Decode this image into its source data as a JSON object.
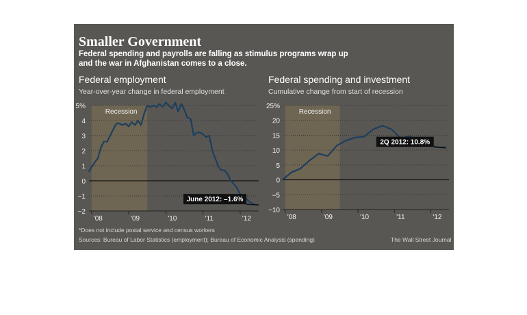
{
  "headline": "Smaller Government",
  "dek": [
    "Federal spending and payrolls are falling as stimulus programs wrap up",
    "and the war in Afghanistan comes to a close."
  ],
  "footnote": "*Does not include postal service and census workers",
  "sources": "Sources: Bureau of Labor Statistics (employment); Bureau of Economic Analysis (spending)",
  "credit": "The Wall Street Journal",
  "colors": {
    "background": "#595753",
    "line": "#1c3f5e",
    "recession": "#6e6553",
    "callout": "#111111",
    "text": "#f2f2f2"
  },
  "chart_data": [
    {
      "type": "line",
      "title": "Federal employment",
      "subtitle": "Year-over-year change in federal employment",
      "unit_label": "%",
      "shade_label": "Recession",
      "shade_range": [
        2008.0,
        2009.5
      ],
      "callout": "June 2012: –1.6%",
      "xlim": [
        2007.93,
        2012.5
      ],
      "ylim": [
        -2,
        5
      ],
      "yticks": [
        -2,
        -1,
        0,
        1,
        2,
        3,
        4,
        5
      ],
      "ytick_labels": [
        "−2",
        "−1",
        "0",
        "1",
        "2",
        "3",
        "4",
        "5%"
      ],
      "xticks": [
        2008,
        2009,
        2010,
        2011,
        2012
      ],
      "xtick_labels": [
        "'08",
        "'09",
        "'10",
        "'11",
        "'12"
      ],
      "x": [
        2007.92,
        2008.0,
        2008.08,
        2008.17,
        2008.25,
        2008.33,
        2008.42,
        2008.5,
        2008.58,
        2008.67,
        2008.75,
        2008.83,
        2008.92,
        2009.0,
        2009.08,
        2009.17,
        2009.25,
        2009.33,
        2009.42,
        2009.5,
        2009.58,
        2009.67,
        2009.75,
        2009.83,
        2009.92,
        2010.0,
        2010.08,
        2010.17,
        2010.25,
        2010.33,
        2010.42,
        2010.5,
        2010.58,
        2010.67,
        2010.75,
        2010.83,
        2010.92,
        2011.0,
        2011.08,
        2011.17,
        2011.25,
        2011.33,
        2011.42,
        2011.5,
        2011.58,
        2011.67,
        2011.75,
        2011.83,
        2011.92,
        2012.0,
        2012.08,
        2012.17,
        2012.25,
        2012.33,
        2012.42,
        2012.5
      ],
      "y": [
        0.6,
        0.9,
        1.2,
        1.5,
        2.2,
        2.6,
        2.6,
        3.0,
        3.4,
        3.8,
        3.8,
        3.7,
        3.8,
        3.6,
        3.9,
        3.7,
        4.0,
        3.7,
        4.5,
        5.0,
        4.9,
        5.0,
        4.9,
        5.1,
        4.9,
        5.2,
        5.0,
        4.8,
        5.2,
        4.6,
        5.1,
        4.7,
        4.2,
        4.1,
        3.0,
        3.2,
        3.2,
        3.1,
        2.9,
        3.0,
        2.0,
        1.5,
        0.9,
        0.7,
        0.7,
        0.4,
        0.0,
        -0.2,
        -0.5,
        -0.9,
        -1.1,
        -1.2,
        -1.4,
        -1.5,
        -1.6,
        -1.6
      ]
    },
    {
      "type": "line",
      "title": "Federal spending and investment",
      "subtitle": "Cumulative change from start of recession",
      "unit_label": "%",
      "shade_label": "Recession",
      "shade_range": [
        2008.0,
        2009.5
      ],
      "callout": "2Q 2012: 10.8%",
      "xlim": [
        2007.93,
        2012.5
      ],
      "ylim": [
        -10,
        25
      ],
      "yticks": [
        -10,
        -5,
        0,
        5,
        10,
        15,
        20,
        25
      ],
      "ytick_labels": [
        "−10",
        "−5",
        "0",
        "5",
        "10",
        "15",
        "20",
        "25%"
      ],
      "xticks": [
        2008,
        2009,
        2010,
        2011,
        2012
      ],
      "xtick_labels": [
        "'08",
        "'09",
        "'10",
        "'11",
        "'12"
      ],
      "x": [
        2007.92,
        2008.17,
        2008.42,
        2008.67,
        2008.92,
        2009.17,
        2009.42,
        2009.67,
        2009.92,
        2010.17,
        2010.42,
        2010.67,
        2010.92,
        2011.17,
        2011.42,
        2011.67,
        2011.92,
        2012.17,
        2012.42
      ],
      "y": [
        0.0,
        2.5,
        3.8,
        6.5,
        8.8,
        8.0,
        11.5,
        13.2,
        14.2,
        14.5,
        17.0,
        18.2,
        17.0,
        14.0,
        14.6,
        13.2,
        12.0,
        11.0,
        10.8
      ]
    }
  ]
}
